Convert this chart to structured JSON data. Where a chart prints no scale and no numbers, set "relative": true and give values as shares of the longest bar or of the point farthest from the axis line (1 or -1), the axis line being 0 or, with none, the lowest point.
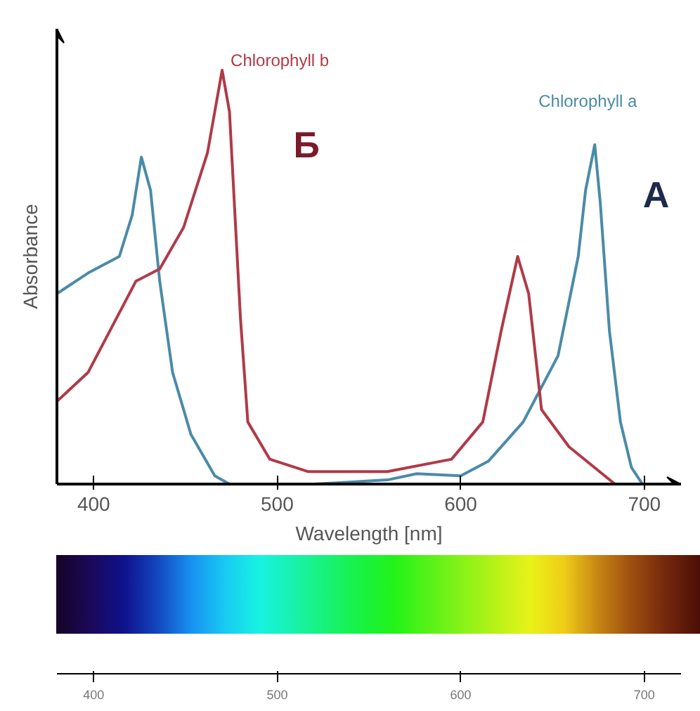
{
  "chart_data": [
    {
      "type": "line",
      "relative": true,
      "xlabel": "Wavelength [nm]",
      "ylabel": "Absorbance",
      "xlim": [
        380,
        720
      ],
      "xticks": [
        400,
        500,
        600,
        700
      ],
      "x2lim": [
        380,
        720
      ],
      "x2ticks": [
        400,
        500,
        600,
        700
      ],
      "grid": false,
      "marker": "none",
      "line_style": "solid",
      "annotations": [
        "Б",
        "A"
      ],
      "series": [
        {
          "name": "Chlorophyll a",
          "color": "#4a8ba8",
          "x": [
            380,
            397,
            414,
            421,
            426,
            431,
            436,
            443,
            453,
            466,
            474,
            520,
            560,
            576,
            600,
            615,
            634,
            653,
            664,
            668,
            673,
            676,
            681,
            687,
            693,
            699
          ],
          "values": [
            0.46,
            0.51,
            0.55,
            0.65,
            0.79,
            0.71,
            0.49,
            0.27,
            0.12,
            0.02,
            0,
            0,
            0.01,
            0.025,
            0.02,
            0.055,
            0.15,
            0.31,
            0.55,
            0.71,
            0.82,
            0.68,
            0.37,
            0.15,
            0.04,
            0
          ]
        },
        {
          "name": "Chlorophyll b",
          "color": "#b03a48",
          "x": [
            380,
            397,
            410,
            423,
            436,
            449,
            462,
            470,
            474,
            480,
            484,
            496,
            517,
            560,
            595,
            612,
            622,
            631,
            637,
            644,
            659,
            684
          ],
          "values": [
            0.2,
            0.27,
            0.38,
            0.49,
            0.52,
            0.62,
            0.8,
            1.0,
            0.9,
            0.4,
            0.15,
            0.06,
            0.03,
            0.03,
            0.06,
            0.15,
            0.37,
            0.55,
            0.46,
            0.18,
            0.09,
            0
          ]
        }
      ]
    }
  ]
}
